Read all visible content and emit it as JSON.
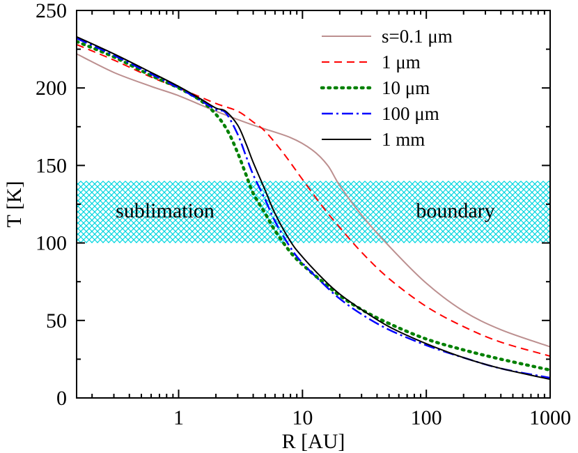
{
  "chart_data": {
    "type": "line",
    "xlabel": "R [AU]",
    "ylabel": "T [K]",
    "xscale": "log",
    "xlim": [
      0.15,
      1000
    ],
    "ylim": [
      0,
      250
    ],
    "xticks": [
      1,
      10,
      100,
      1000
    ],
    "xtick_labels": [
      "1",
      "10",
      "100",
      "1000"
    ],
    "yticks": [
      0,
      50,
      100,
      150,
      200,
      250
    ],
    "ytick_labels": [
      "0",
      "50",
      "100",
      "150",
      "200",
      "250"
    ],
    "grid": false,
    "legend_position": "top-right",
    "band": {
      "y_range": [
        100,
        140
      ],
      "color": "#00d5e0",
      "labels": [
        "sublimation",
        "boundary"
      ]
    },
    "series": [
      {
        "name": "s=0.1 μm",
        "color": "#bc8f8f",
        "style": "solid",
        "points": [
          [
            0.15,
            222
          ],
          [
            0.3,
            210
          ],
          [
            0.6,
            201
          ],
          [
            1,
            195
          ],
          [
            2,
            185
          ],
          [
            4,
            176
          ],
          [
            8,
            168
          ],
          [
            12,
            160
          ],
          [
            16,
            150
          ],
          [
            20,
            137
          ],
          [
            30,
            118
          ],
          [
            50,
            98
          ],
          [
            100,
            74
          ],
          [
            200,
            56
          ],
          [
            400,
            44
          ],
          [
            1000,
            33
          ]
        ]
      },
      {
        "name": "1 μm",
        "color": "#ff0000",
        "style": "dashed",
        "points": [
          [
            0.15,
            228
          ],
          [
            0.3,
            218
          ],
          [
            0.6,
            207
          ],
          [
            1,
            200
          ],
          [
            2,
            190
          ],
          [
            3,
            185
          ],
          [
            4,
            178
          ],
          [
            5,
            172
          ],
          [
            7,
            158
          ],
          [
            10,
            141
          ],
          [
            15,
            122
          ],
          [
            20,
            110
          ],
          [
            30,
            94
          ],
          [
            50,
            77
          ],
          [
            100,
            59
          ],
          [
            200,
            46
          ],
          [
            400,
            36
          ],
          [
            1000,
            27
          ]
        ]
      },
      {
        "name": "10 μm",
        "color": "#008000",
        "style": "dotted",
        "points": [
          [
            0.15,
            230
          ],
          [
            0.3,
            220
          ],
          [
            0.6,
            208
          ],
          [
            1,
            200
          ],
          [
            1.5,
            192
          ],
          [
            2,
            183
          ],
          [
            2.5,
            172
          ],
          [
            3,
            158
          ],
          [
            3.5,
            144
          ],
          [
            4,
            132
          ],
          [
            5,
            119
          ],
          [
            6,
            108
          ],
          [
            8,
            94
          ],
          [
            10,
            86
          ],
          [
            15,
            74
          ],
          [
            20,
            66
          ],
          [
            30,
            57
          ],
          [
            50,
            48
          ],
          [
            100,
            38
          ],
          [
            200,
            31
          ],
          [
            400,
            25
          ],
          [
            1000,
            18
          ]
        ]
      },
      {
        "name": "100 μm",
        "color": "#0000ff",
        "style": "dashdot",
        "points": [
          [
            0.15,
            232
          ],
          [
            0.3,
            221
          ],
          [
            0.6,
            209
          ],
          [
            1,
            200
          ],
          [
            1.5,
            192
          ],
          [
            2,
            186
          ],
          [
            2.4,
            184
          ],
          [
            3,
            170
          ],
          [
            3.5,
            156
          ],
          [
            4,
            144
          ],
          [
            5,
            128
          ],
          [
            6,
            114
          ],
          [
            8,
            97
          ],
          [
            10,
            87
          ],
          [
            15,
            73
          ],
          [
            20,
            64
          ],
          [
            30,
            54
          ],
          [
            50,
            44
          ],
          [
            100,
            34
          ],
          [
            200,
            26
          ],
          [
            400,
            19
          ],
          [
            1000,
            13
          ]
        ]
      },
      {
        "name": "1 mm",
        "color": "#000000",
        "style": "solid",
        "points": [
          [
            0.15,
            233
          ],
          [
            0.3,
            222
          ],
          [
            0.6,
            210
          ],
          [
            1,
            201
          ],
          [
            1.5,
            193
          ],
          [
            2,
            187
          ],
          [
            2.4,
            185
          ],
          [
            3,
            176
          ],
          [
            3.5,
            164
          ],
          [
            4,
            152
          ],
          [
            5,
            134
          ],
          [
            6,
            119
          ],
          [
            8,
            101
          ],
          [
            10,
            91
          ],
          [
            15,
            76
          ],
          [
            20,
            67
          ],
          [
            30,
            57
          ],
          [
            50,
            46
          ],
          [
            100,
            35
          ],
          [
            200,
            26
          ],
          [
            400,
            19
          ],
          [
            1000,
            12
          ]
        ]
      }
    ]
  }
}
